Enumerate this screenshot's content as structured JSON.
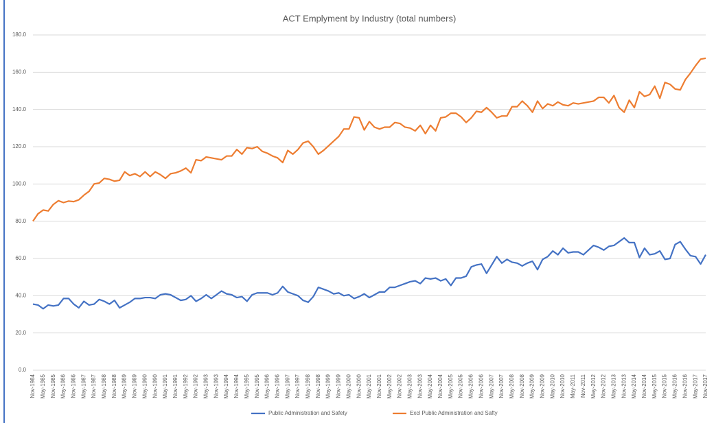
{
  "chart_data": {
    "type": "line",
    "title": "ACT Emplyment by Industry (total numbers)",
    "categories": [
      "Nov-1984",
      null,
      "May-1985",
      null,
      "Nov-1985",
      null,
      "May-1986",
      null,
      "Nov-1986",
      null,
      "May-1987",
      null,
      "Nov-1987",
      null,
      "May-1988",
      null,
      "Nov-1988",
      null,
      "May-1989",
      null,
      "Nov-1989",
      null,
      "May-1990",
      null,
      "Nov-1990",
      null,
      "May-1991",
      null,
      "Nov-1991",
      null,
      "May-1992",
      null,
      "Nov-1992",
      null,
      "May-1993",
      null,
      "Nov-1993",
      null,
      "May-1994",
      null,
      "Nov-1994",
      null,
      "May-1995",
      null,
      "Nov-1995",
      null,
      "May-1996",
      null,
      "Nov-1996",
      null,
      "May-1997",
      null,
      "Nov-1997",
      null,
      "May-1998",
      null,
      "Nov-1998",
      null,
      "May-1999",
      null,
      "Nov-1999",
      null,
      "May-2000",
      null,
      "Nov-2000",
      null,
      "May-2001",
      null,
      "Nov-2001",
      null,
      "May-2002",
      null,
      "Nov-2002",
      null,
      "May-2003",
      null,
      "Nov-2003",
      null,
      "May-2004",
      null,
      "Nov-2004",
      null,
      "May-2005",
      null,
      "Nov-2005",
      null,
      "May-2006",
      null,
      "Nov-2006",
      null,
      "May-2007",
      null,
      "Nov-2007",
      null,
      "May-2008",
      null,
      "Nov-2008",
      null,
      "May-2009",
      null,
      "Nov-2009",
      null,
      "May-2010",
      null,
      "Nov-2010",
      null,
      "May-2011",
      null,
      "Nov-2011",
      null,
      "May-2012",
      null,
      "Nov-2012",
      null,
      "May-2013",
      null,
      "Nov-2013",
      null,
      "May-2014",
      null,
      "Nov-2014",
      null,
      "May-2015",
      null,
      "Nov-2015",
      null,
      "May-2016",
      null,
      "Nov-2016",
      null,
      "May-2017",
      null,
      "Nov-2017"
    ],
    "series": [
      {
        "name": "Public Administration and Safety",
        "color": "#4472c4",
        "values": [
          35.5,
          35,
          33,
          35,
          34.5,
          35,
          38.5,
          38.5,
          35.5,
          33.5,
          37,
          35,
          35.5,
          38,
          37,
          35.5,
          37.5,
          33.5,
          35,
          36.5,
          38.5,
          38.5,
          39,
          39,
          38.5,
          40.5,
          41,
          40.5,
          39,
          37.5,
          38,
          40,
          37,
          38.5,
          40.5,
          38.5,
          40.5,
          42.5,
          41,
          40.5,
          39,
          39.5,
          37,
          40.5,
          41.5,
          41.5,
          41.5,
          40.5,
          41.5,
          45,
          42,
          41,
          40,
          37.5,
          36.5,
          39.5,
          44.5,
          43.5,
          42.5,
          41,
          41.5,
          40,
          40.5,
          38.5,
          39.5,
          41,
          39,
          40.5,
          42,
          42,
          44.5,
          44.5,
          45.5,
          46.5,
          47.5,
          48,
          46.5,
          49.5,
          49,
          49.5,
          48,
          49,
          45.5,
          49.5,
          49.5,
          50.5,
          55.5,
          56.5,
          57,
          52,
          56.5,
          61,
          57.5,
          59.5,
          58,
          57.5,
          56,
          57.5,
          58.5,
          54,
          59.5,
          61,
          64,
          62,
          65.5,
          63,
          63.5,
          63.5,
          62,
          64.5,
          67,
          66,
          64.5,
          66.5,
          67,
          69,
          71,
          68.5,
          68.5,
          60.5,
          65.5,
          62,
          62.5,
          64,
          59.5,
          60,
          67.5,
          69,
          65,
          61.5,
          61,
          57,
          62
        ]
      },
      {
        "name": "Excl Public Administration and Safty",
        "color": "#ed7d31",
        "values": [
          80,
          84,
          86,
          85.5,
          89,
          91,
          90,
          90.8,
          90.5,
          91.5,
          94,
          96,
          100,
          100.5,
          103,
          102.5,
          101.5,
          102,
          106.5,
          104.5,
          105.5,
          104,
          106.5,
          104,
          106.5,
          105,
          103,
          105.5,
          106,
          107,
          108.5,
          106,
          113,
          112.5,
          114.5,
          114,
          113.5,
          113,
          115,
          115,
          118.5,
          116,
          119.5,
          119,
          120,
          117.5,
          116.5,
          115,
          114,
          111.5,
          118,
          116,
          118.5,
          122,
          123,
          120,
          116,
          118,
          120.5,
          123,
          125.5,
          129.5,
          129.5,
          136,
          135.5,
          129,
          133.5,
          130.5,
          129.5,
          130.5,
          130.5,
          133,
          132.5,
          130.5,
          130,
          128.5,
          131.5,
          127,
          131.5,
          128.5,
          135.5,
          136,
          138,
          138,
          136,
          133,
          135.5,
          139,
          138.5,
          141,
          138.5,
          135.5,
          136.5,
          136.5,
          141.5,
          141.5,
          144.5,
          142,
          138.5,
          144.5,
          140.5,
          143,
          142,
          144,
          142.5,
          142,
          143.5,
          143,
          143.5,
          144,
          144.5,
          146.5,
          146.5,
          143.5,
          147.5,
          141,
          138.5,
          145,
          141,
          149.5,
          147,
          148,
          152.5,
          146,
          154.5,
          153.5,
          151,
          150.5,
          156,
          159.5,
          163.5,
          167,
          167.5
        ]
      }
    ],
    "ylim": [
      0,
      180
    ],
    "yticks": [
      {
        "value": 0,
        "label": "0.0"
      },
      {
        "value": 20,
        "label": "20.0"
      },
      {
        "value": 40,
        "label": "40.0"
      },
      {
        "value": 60,
        "label": "60.0"
      },
      {
        "value": 80,
        "label": "80.0"
      },
      {
        "value": 100,
        "label": "100.0"
      },
      {
        "value": 120,
        "label": "120.0"
      },
      {
        "value": 140,
        "label": "140.0"
      },
      {
        "value": 160,
        "label": "160.0"
      },
      {
        "value": 180,
        "label": "180.0"
      }
    ],
    "grid": true,
    "legend": "bottom"
  }
}
